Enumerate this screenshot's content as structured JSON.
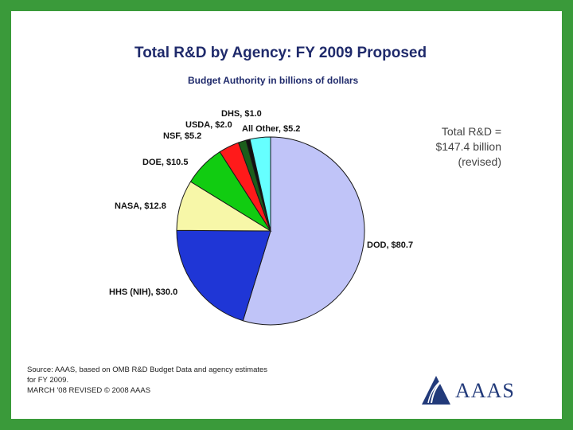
{
  "chart_data": {
    "type": "pie",
    "title": "Total R&D by Agency: FY 2009 Proposed",
    "subtitle": "Budget Authority in billions of dollars",
    "annotation": [
      "Total R&D =",
      "$147.4 billion",
      "(revised)"
    ],
    "slices": [
      {
        "label": "DOD, $80.7",
        "value": 80.7,
        "color": "#c0c4f8"
      },
      {
        "label": "HHS (NIH), $30.0",
        "value": 30.0,
        "color": "#1f36d6"
      },
      {
        "label": "NASA, $12.8",
        "value": 12.8,
        "color": "#f7f7a8"
      },
      {
        "label": "DOE, $10.5",
        "value": 10.5,
        "color": "#11cc11"
      },
      {
        "label": "NSF, $5.2",
        "value": 5.2,
        "color": "#ff1a1a"
      },
      {
        "label": "USDA, $2.0",
        "value": 2.0,
        "color": "#1b5e1b"
      },
      {
        "label": "DHS, $1.0",
        "value": 1.0,
        "color": "#111111"
      },
      {
        "label": "All Other, $5.2",
        "value": 5.2,
        "color": "#66ffff"
      }
    ]
  },
  "source": [
    "Source: AAAS, based on OMB R&D Budget Data and agency estimates",
    "for FY 2009.",
    "MARCH '08 REVISED © 2008 AAAS"
  ],
  "logo_text": "AAAS"
}
